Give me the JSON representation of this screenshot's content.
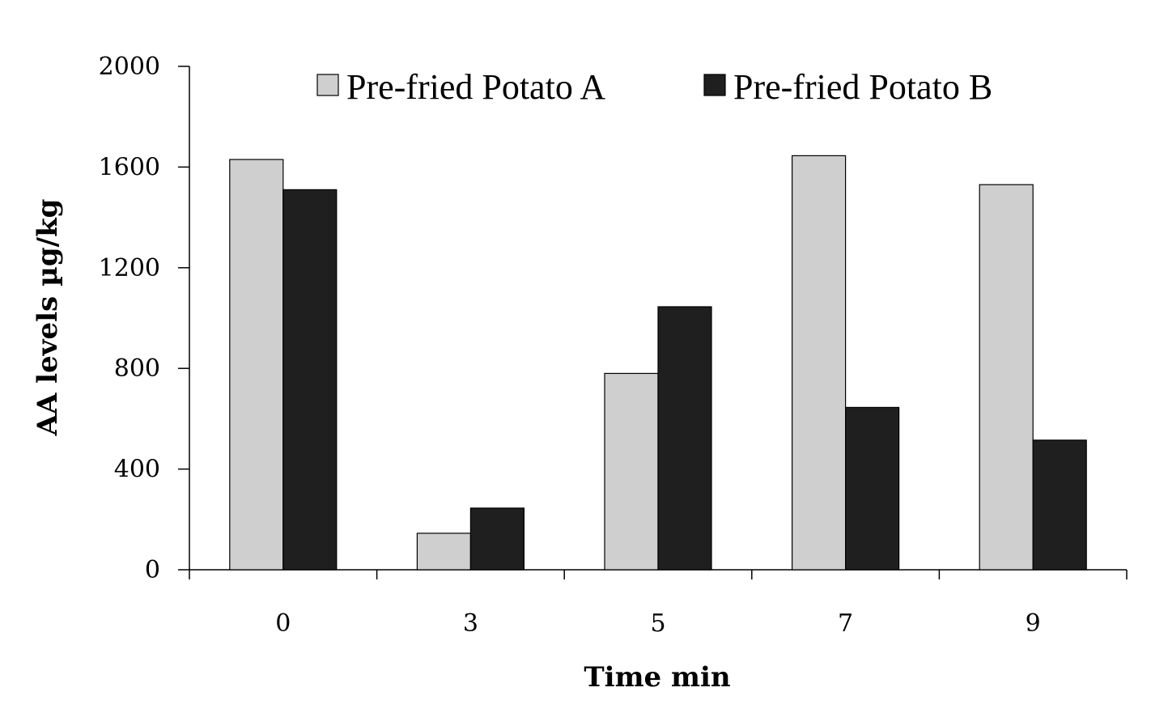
{
  "chart_data": {
    "type": "bar",
    "title": "",
    "xlabel": "Time min",
    "ylabel": "AA levels µg/kg",
    "categories": [
      "0",
      "3",
      "5",
      "7",
      "9"
    ],
    "series": [
      {
        "name": "Pre-fried Potato A",
        "values": [
          1630,
          145,
          780,
          1645,
          1530
        ]
      },
      {
        "name": "Pre-fried Potato B",
        "values": [
          1510,
          245,
          1045,
          645,
          515
        ]
      }
    ],
    "ylim": [
      0,
      2000
    ],
    "yticks": [
      "0",
      "400",
      "800",
      "1200",
      "1600",
      "2000"
    ],
    "grid": false,
    "legend_position": "top",
    "colors": {
      "Pre-fried Potato A": "#cfcfcf",
      "Pre-fried Potato B": "#1f1f1f"
    }
  }
}
